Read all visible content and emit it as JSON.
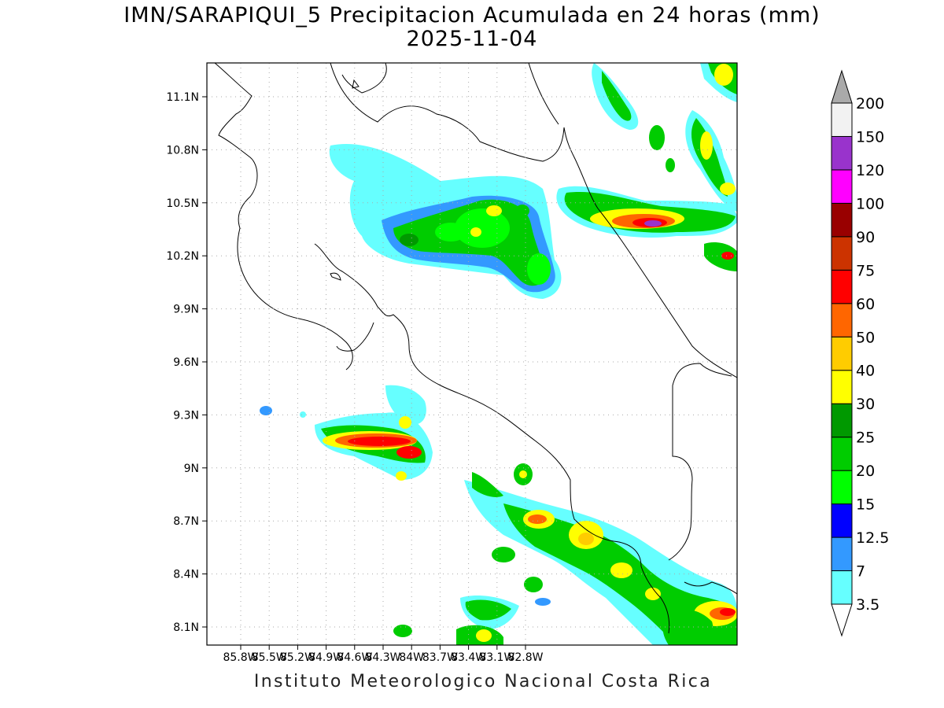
{
  "header": {
    "title": "IMN/SARAPIQUI_5 Precipitacion Acumulada en 24 horas (mm)",
    "date": "2025-11-04"
  },
  "map": {
    "lat_ticks": [
      "11.1N",
      "10.8N",
      "10.5N",
      "10.2N",
      "9.9N",
      "9.6N",
      "9.3N",
      "9N",
      "8.7N",
      "8.4N",
      "8.1N"
    ],
    "lon_ticks": [
      "85.8W",
      "85.5W",
      "85.2W",
      "84.9W",
      "84.6W",
      "84.3W",
      "84W",
      "83.7W",
      "83.4W",
      "83.1W",
      "82.8W"
    ]
  },
  "legend": {
    "labels": [
      "3.5",
      "7",
      "12.5",
      "15",
      "20",
      "25",
      "30",
      "40",
      "50",
      "60",
      "75",
      "90",
      "100",
      "120",
      "150",
      "200"
    ],
    "colors": [
      "#ffffff",
      "#66ffff",
      "#3399ff",
      "#0000ff",
      "#00ff00",
      "#00cc00",
      "#009900",
      "#ffff00",
      "#ffcc00",
      "#ff6600",
      "#ff0000",
      "#cc3300",
      "#990000",
      "#ff00ff",
      "#9933cc",
      "#f2f2f2",
      "#aaaaaa"
    ]
  },
  "footer": {
    "credit": "Instituto Meteorologico Nacional Costa Rica"
  }
}
